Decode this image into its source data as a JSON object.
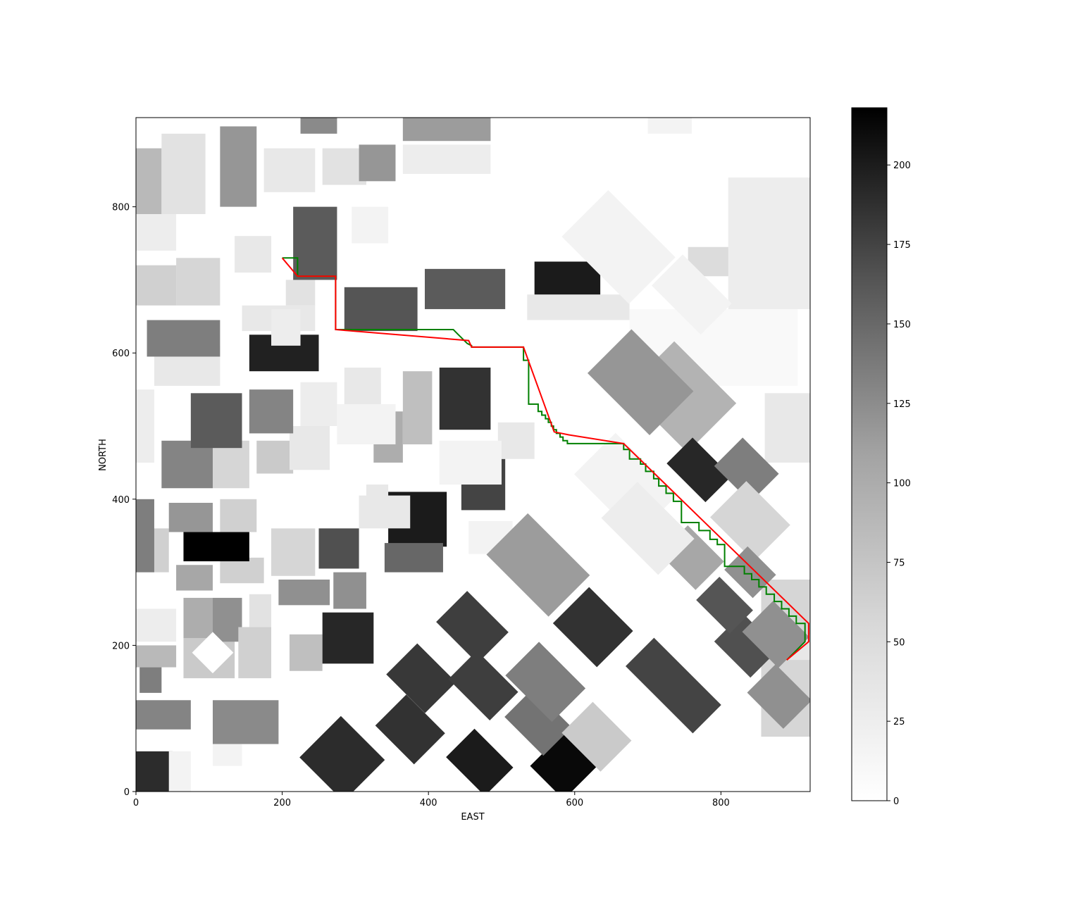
{
  "chart_data": {
    "type": "heatmap",
    "title": "",
    "xlabel": "EAST",
    "ylabel": "NORTH",
    "xlim": [
      0,
      922
    ],
    "ylim": [
      0,
      922
    ],
    "x_ticks": [
      0,
      200,
      400,
      600,
      800
    ],
    "y_ticks": [
      0,
      200,
      400,
      600,
      800
    ],
    "colormap": "Greys",
    "colorbar": {
      "min": 0,
      "max": 218,
      "ticks": [
        0,
        25,
        50,
        75,
        100,
        125,
        150,
        175,
        200
      ]
    },
    "grid": false,
    "legend": "none",
    "buildings": [
      {
        "x0": 0,
        "x1": 50,
        "y0": 0,
        "y1": 55,
        "v": 180
      },
      {
        "x0": 45,
        "x1": 75,
        "y0": 0,
        "y1": 55,
        "v": 10
      },
      {
        "x0": 0,
        "x1": 75,
        "y0": 85,
        "y1": 125,
        "v": 105
      },
      {
        "x0": 5,
        "x1": 35,
        "y0": 135,
        "y1": 170,
        "v": 110
      },
      {
        "x0": 0,
        "x1": 55,
        "y0": 170,
        "y1": 200,
        "v": 60
      },
      {
        "x0": 0,
        "x1": 55,
        "y0": 205,
        "y1": 250,
        "v": 15
      },
      {
        "x0": 65,
        "x1": 135,
        "y0": 155,
        "y1": 210,
        "v": 45
      },
      {
        "x0": 65,
        "x1": 105,
        "y0": 210,
        "y1": 265,
        "v": 70
      },
      {
        "x0": 105,
        "x1": 145,
        "y0": 205,
        "y1": 265,
        "v": 95
      },
      {
        "x0": 140,
        "x1": 185,
        "y0": 155,
        "y1": 225,
        "v": 40
      },
      {
        "x0": 155,
        "x1": 185,
        "y0": 225,
        "y1": 270,
        "v": 25
      },
      {
        "x0": 105,
        "x1": 195,
        "y0": 65,
        "y1": 125,
        "v": 100
      },
      {
        "x0": 105,
        "x1": 145,
        "y0": 35,
        "y1": 65,
        "v": 10
      },
      {
        "x0": 0,
        "x1": 45,
        "y0": 300,
        "y1": 360,
        "v": 40
      },
      {
        "x0": 55,
        "x1": 105,
        "y0": 275,
        "y1": 310,
        "v": 75
      },
      {
        "x0": 115,
        "x1": 175,
        "y0": 285,
        "y1": 320,
        "v": 40
      },
      {
        "x0": 65,
        "x1": 155,
        "y0": 315,
        "y1": 355,
        "v": 218
      },
      {
        "x0": 45,
        "x1": 105,
        "y0": 355,
        "y1": 395,
        "v": 90
      },
      {
        "x0": 115,
        "x1": 165,
        "y0": 355,
        "y1": 400,
        "v": 40
      },
      {
        "x0": 185,
        "x1": 245,
        "y0": 295,
        "y1": 360,
        "v": 35
      },
      {
        "x0": 250,
        "x1": 305,
        "y0": 305,
        "y1": 360,
        "v": 150
      },
      {
        "x0": 195,
        "x1": 265,
        "y0": 255,
        "y1": 290,
        "v": 95
      },
      {
        "x0": 270,
        "x1": 315,
        "y0": 250,
        "y1": 300,
        "v": 95
      },
      {
        "x0": 210,
        "x1": 255,
        "y0": 165,
        "y1": 215,
        "v": 55
      },
      {
        "x0": 255,
        "x1": 325,
        "y0": 175,
        "y1": 245,
        "v": 185
      },
      {
        "x0": 0,
        "x1": 25,
        "y0": 300,
        "y1": 400,
        "v": 110
      },
      {
        "x0": 35,
        "x1": 105,
        "y0": 415,
        "y1": 480,
        "v": 105
      },
      {
        "x0": 105,
        "x1": 155,
        "y0": 415,
        "y1": 480,
        "v": 35
      },
      {
        "x0": 165,
        "x1": 215,
        "y0": 435,
        "y1": 480,
        "v": 45
      },
      {
        "x0": 210,
        "x1": 265,
        "y0": 440,
        "y1": 500,
        "v": 20
      },
      {
        "x0": 75,
        "x1": 145,
        "y0": 470,
        "y1": 545,
        "v": 140
      },
      {
        "x0": 155,
        "x1": 215,
        "y0": 490,
        "y1": 550,
        "v": 105
      },
      {
        "x0": 225,
        "x1": 275,
        "y0": 500,
        "y1": 560,
        "v": 15
      },
      {
        "x0": 25,
        "x1": 115,
        "y0": 555,
        "y1": 610,
        "v": 20
      },
      {
        "x0": 15,
        "x1": 115,
        "y0": 595,
        "y1": 645,
        "v": 110
      },
      {
        "x0": 0,
        "x1": 55,
        "y0": 665,
        "y1": 720,
        "v": 40
      },
      {
        "x0": 55,
        "x1": 115,
        "y0": 665,
        "y1": 730,
        "v": 35
      },
      {
        "x0": 155,
        "x1": 250,
        "y0": 575,
        "y1": 625,
        "v": 190
      },
      {
        "x0": 145,
        "x1": 245,
        "y0": 630,
        "y1": 665,
        "v": 20
      },
      {
        "x0": 205,
        "x1": 245,
        "y0": 665,
        "y1": 700,
        "v": 25
      },
      {
        "x0": 185,
        "x1": 225,
        "y0": 610,
        "y1": 660,
        "v": 15
      },
      {
        "x0": 315,
        "x1": 345,
        "y0": 390,
        "y1": 420,
        "v": 20
      },
      {
        "x0": 345,
        "x1": 425,
        "y0": 335,
        "y1": 410,
        "v": 195
      },
      {
        "x0": 340,
        "x1": 420,
        "y0": 300,
        "y1": 340,
        "v": 130
      },
      {
        "x0": 305,
        "x1": 375,
        "y0": 360,
        "y1": 405,
        "v": 20
      },
      {
        "x0": 285,
        "x1": 335,
        "y0": 505,
        "y1": 560,
        "v": 15
      },
      {
        "x0": 325,
        "x1": 365,
        "y0": 450,
        "y1": 520,
        "v": 70
      },
      {
        "x0": 365,
        "x1": 405,
        "y0": 475,
        "y1": 575,
        "v": 55
      },
      {
        "x0": 415,
        "x1": 485,
        "y0": 495,
        "y1": 580,
        "v": 175
      },
      {
        "x0": 445,
        "x1": 505,
        "y0": 385,
        "y1": 455,
        "v": 160
      },
      {
        "x0": 495,
        "x1": 545,
        "y0": 455,
        "y1": 505,
        "v": 20
      },
      {
        "x0": 455,
        "x1": 515,
        "y0": 325,
        "y1": 370,
        "v": 10
      },
      {
        "x0": 415,
        "x1": 500,
        "y0": 420,
        "y1": 480,
        "v": 10
      },
      {
        "x0": 285,
        "x1": 385,
        "y0": 630,
        "y1": 690,
        "v": 145
      },
      {
        "x0": 395,
        "x1": 505,
        "y0": 660,
        "y1": 715,
        "v": 140
      },
      {
        "x0": 215,
        "x1": 275,
        "y0": 700,
        "y1": 800,
        "v": 140
      },
      {
        "x0": 545,
        "x1": 635,
        "y0": 670,
        "y1": 725,
        "v": 195
      },
      {
        "x0": 535,
        "x1": 675,
        "y0": 645,
        "y1": 680,
        "v": 20
      },
      {
        "x0": 275,
        "x1": 355,
        "y0": 475,
        "y1": 530,
        "v": 10
      },
      {
        "x0": 285,
        "x1": 335,
        "y0": 530,
        "y1": 580,
        "v": 20
      },
      {
        "x0": 0,
        "x1": 35,
        "y0": 790,
        "y1": 880,
        "v": 60
      },
      {
        "x0": 35,
        "x1": 95,
        "y0": 790,
        "y1": 900,
        "v": 25
      },
      {
        "x0": 115,
        "x1": 165,
        "y0": 800,
        "y1": 910,
        "v": 90
      },
      {
        "x0": 175,
        "x1": 245,
        "y0": 820,
        "y1": 880,
        "v": 20
      },
      {
        "x0": 225,
        "x1": 275,
        "y0": 900,
        "y1": 922,
        "v": 100
      },
      {
        "x0": 255,
        "x1": 315,
        "y0": 830,
        "y1": 880,
        "v": 25
      },
      {
        "x0": 305,
        "x1": 355,
        "y0": 835,
        "y1": 885,
        "v": 90
      },
      {
        "x0": 365,
        "x1": 485,
        "y0": 890,
        "y1": 922,
        "v": 85
      },
      {
        "x0": 365,
        "x1": 485,
        "y0": 845,
        "y1": 885,
        "v": 15
      },
      {
        "x0": 0,
        "x1": 55,
        "y0": 740,
        "y1": 790,
        "v": 15
      },
      {
        "x0": 135,
        "x1": 185,
        "y0": 710,
        "y1": 760,
        "v": 20
      },
      {
        "x0": 295,
        "x1": 345,
        "y0": 750,
        "y1": 800,
        "v": 10
      },
      {
        "x0": 675,
        "x1": 905,
        "y0": 555,
        "y1": 660,
        "v": 5
      },
      {
        "x0": 755,
        "x1": 825,
        "y0": 705,
        "y1": 745,
        "v": 30
      },
      {
        "x0": 810,
        "x1": 922,
        "y0": 660,
        "y1": 840,
        "v": 15
      },
      {
        "x0": 860,
        "x1": 922,
        "y0": 450,
        "y1": 545,
        "v": 20
      },
      {
        "x0": 0,
        "x1": 25,
        "y0": 450,
        "y1": 550,
        "v": 15
      },
      {
        "x0": 700,
        "x1": 760,
        "y0": 900,
        "y1": 922,
        "v": 10
      },
      {
        "x0": 855,
        "x1": 922,
        "y0": 75,
        "y1": 290,
        "v": 35
      },
      {
        "x0": 885,
        "x1": 922,
        "y0": 180,
        "y1": 215,
        "v": 20
      }
    ],
    "rotated_buildings": [
      {
        "cx": 105,
        "cy": 190,
        "w": 40,
        "h": 40,
        "v": 0
      },
      {
        "cx": 282,
        "cy": 45,
        "w": 85,
        "h": 80,
        "v": 180
      },
      {
        "cx": 375,
        "cy": 85,
        "w": 75,
        "h": 60,
        "v": 175
      },
      {
        "cx": 390,
        "cy": 155,
        "w": 75,
        "h": 60,
        "v": 170
      },
      {
        "cx": 460,
        "cy": 225,
        "w": 80,
        "h": 60,
        "v": 165
      },
      {
        "cx": 475,
        "cy": 145,
        "w": 80,
        "h": 55,
        "v": 165
      },
      {
        "cx": 470,
        "cy": 40,
        "w": 75,
        "h": 55,
        "v": 195
      },
      {
        "cx": 585,
        "cy": 35,
        "w": 65,
        "h": 65,
        "v": 210
      },
      {
        "cx": 550,
        "cy": 95,
        "w": 75,
        "h": 55,
        "v": 120
      },
      {
        "cx": 560,
        "cy": 150,
        "w": 90,
        "h": 65,
        "v": 110
      },
      {
        "cx": 550,
        "cy": 310,
        "w": 120,
        "h": 80,
        "v": 85
      },
      {
        "cx": 625,
        "cy": 225,
        "w": 85,
        "h": 70,
        "v": 175
      },
      {
        "cx": 630,
        "cy": 75,
        "w": 75,
        "h": 60,
        "v": 45
      },
      {
        "cx": 735,
        "cy": 145,
        "w": 130,
        "h": 55,
        "v": 160
      },
      {
        "cx": 835,
        "cy": 200,
        "w": 70,
        "h": 55,
        "v": 150
      },
      {
        "cx": 875,
        "cy": 215,
        "w": 70,
        "h": 60,
        "v": 95
      },
      {
        "cx": 880,
        "cy": 130,
        "w": 70,
        "h": 55,
        "v": 95
      },
      {
        "cx": 805,
        "cy": 255,
        "w": 65,
        "h": 45,
        "v": 145
      },
      {
        "cx": 745,
        "cy": 540,
        "w": 120,
        "h": 95,
        "v": 65
      },
      {
        "cx": 690,
        "cy": 560,
        "w": 120,
        "h": 85,
        "v": 90
      },
      {
        "cx": 770,
        "cy": 440,
        "w": 75,
        "h": 50,
        "v": 185
      },
      {
        "cx": 835,
        "cy": 440,
        "w": 70,
        "h": 55,
        "v": 110
      },
      {
        "cx": 840,
        "cy": 370,
        "w": 85,
        "h": 70,
        "v": 35
      },
      {
        "cx": 760,
        "cy": 320,
        "w": 70,
        "h": 55,
        "v": 75
      },
      {
        "cx": 840,
        "cy": 300,
        "w": 55,
        "h": 45,
        "v": 95
      },
      {
        "cx": 670,
        "cy": 420,
        "w": 120,
        "h": 80,
        "v": 10
      },
      {
        "cx": 700,
        "cy": 360,
        "w": 110,
        "h": 70,
        "v": 15
      },
      {
        "cx": 660,
        "cy": 745,
        "w": 130,
        "h": 90,
        "v": 10
      },
      {
        "cx": 760,
        "cy": 680,
        "w": 95,
        "h": 60,
        "v": 10
      }
    ]
  },
  "paths": {
    "planned_path_color": "#008000",
    "smoothed_path_color": "#ff0000",
    "planned_path": [
      [
        200,
        730
      ],
      [
        221,
        730
      ],
      [
        221,
        705
      ],
      [
        273,
        705
      ],
      [
        273,
        632
      ],
      [
        434,
        632
      ],
      [
        438,
        628
      ],
      [
        441,
        625
      ],
      [
        445,
        621
      ],
      [
        449,
        617
      ],
      [
        453,
        613
      ],
      [
        459,
        610
      ],
      [
        459,
        608
      ],
      [
        530,
        608
      ],
      [
        530,
        590
      ],
      [
        537,
        590
      ],
      [
        537,
        530
      ],
      [
        550,
        530
      ],
      [
        550,
        520
      ],
      [
        555,
        520
      ],
      [
        555,
        515
      ],
      [
        560,
        515
      ],
      [
        560,
        510
      ],
      [
        564,
        510
      ],
      [
        564,
        505
      ],
      [
        568,
        505
      ],
      [
        568,
        500
      ],
      [
        571,
        500
      ],
      [
        571,
        495
      ],
      [
        575,
        495
      ],
      [
        575,
        490
      ],
      [
        580,
        490
      ],
      [
        580,
        485
      ],
      [
        584,
        485
      ],
      [
        584,
        480
      ],
      [
        590,
        480
      ],
      [
        590,
        476
      ],
      [
        667,
        476
      ],
      [
        667,
        468
      ],
      [
        675,
        468
      ],
      [
        675,
        455
      ],
      [
        690,
        455
      ],
      [
        690,
        448
      ],
      [
        697,
        448
      ],
      [
        697,
        438
      ],
      [
        708,
        438
      ],
      [
        708,
        428
      ],
      [
        715,
        428
      ],
      [
        715,
        418
      ],
      [
        725,
        418
      ],
      [
        725,
        408
      ],
      [
        735,
        408
      ],
      [
        735,
        397
      ],
      [
        746,
        397
      ],
      [
        746,
        368
      ],
      [
        770,
        368
      ],
      [
        770,
        357
      ],
      [
        785,
        357
      ],
      [
        785,
        345
      ],
      [
        795,
        345
      ],
      [
        795,
        338
      ],
      [
        805,
        338
      ],
      [
        805,
        308
      ],
      [
        832,
        308
      ],
      [
        832,
        298
      ],
      [
        842,
        298
      ],
      [
        842,
        290
      ],
      [
        852,
        290
      ],
      [
        852,
        280
      ],
      [
        862,
        280
      ],
      [
        862,
        270
      ],
      [
        873,
        270
      ],
      [
        873,
        260
      ],
      [
        883,
        260
      ],
      [
        883,
        250
      ],
      [
        893,
        250
      ],
      [
        893,
        240
      ],
      [
        903,
        240
      ],
      [
        903,
        230
      ],
      [
        915,
        230
      ],
      [
        915,
        205
      ],
      [
        910,
        200
      ],
      [
        905,
        195
      ],
      [
        900,
        190
      ],
      [
        895,
        185
      ],
      [
        890,
        180
      ]
    ],
    "smoothed_path": [
      [
        200,
        730
      ],
      [
        221,
        705
      ],
      [
        273,
        705
      ],
      [
        273,
        632
      ],
      [
        455,
        617
      ],
      [
        459,
        608
      ],
      [
        530,
        608
      ],
      [
        572,
        492
      ],
      [
        592,
        488
      ],
      [
        667,
        476
      ],
      [
        920,
        230
      ],
      [
        920,
        205
      ],
      [
        890,
        180
      ]
    ]
  }
}
